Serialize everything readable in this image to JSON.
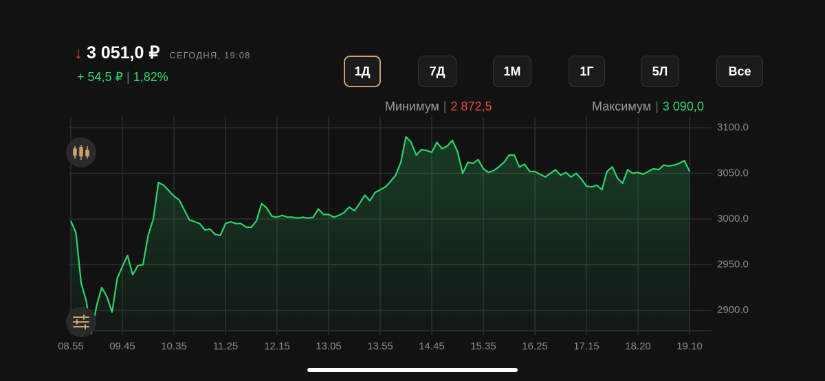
{
  "header": {
    "arrow": "↓",
    "price": "3 051,0 ₽",
    "time": "СЕГОДНЯ, 19:08",
    "change": "+ 54,5 ₽",
    "separator": "|",
    "change_pct": "1,82%"
  },
  "periods": {
    "buttons": [
      "1Д",
      "7Д",
      "1М",
      "1Г",
      "5Л",
      "Все"
    ],
    "active": 0
  },
  "stats": {
    "min_label": "Минимум",
    "min_value": "2 872,5",
    "max_label": "Максимум",
    "max_value": "3 090,0",
    "separator": "|"
  },
  "chart_data": {
    "type": "line",
    "color": "#2bd66a",
    "grid": true,
    "categories": [
      "08.55",
      null,
      null,
      null,
      null,
      null,
      null,
      null,
      null,
      null,
      "09.45",
      null,
      null,
      null,
      null,
      null,
      null,
      null,
      null,
      null,
      "10.35",
      null,
      null,
      null,
      null,
      null,
      null,
      null,
      null,
      null,
      "11.25",
      null,
      null,
      null,
      null,
      null,
      null,
      null,
      null,
      null,
      "12.15",
      null,
      null,
      null,
      null,
      null,
      null,
      null,
      null,
      null,
      "13.05",
      null,
      null,
      null,
      null,
      null,
      null,
      null,
      null,
      null,
      "13.55",
      null,
      null,
      null,
      null,
      null,
      null,
      null,
      null,
      null,
      "14.45",
      null,
      null,
      null,
      null,
      null,
      null,
      null,
      null,
      null,
      "15.35",
      null,
      null,
      null,
      null,
      null,
      null,
      null,
      null,
      null,
      "16.25",
      null,
      null,
      null,
      null,
      null,
      null,
      null,
      null,
      null,
      "17.15",
      null,
      null,
      null,
      null,
      null,
      null,
      null,
      null,
      null,
      "18.20",
      null,
      null,
      null,
      null,
      null,
      null,
      null,
      null,
      null,
      "19.10"
    ],
    "values": [
      2998,
      2985,
      2930,
      2910,
      2875,
      2905,
      2925,
      2915,
      2898,
      2935,
      2948,
      2960,
      2939,
      2949,
      2950,
      2982,
      3000,
      3040,
      3037,
      3031,
      3025,
      3021,
      3010,
      2999,
      2997,
      2995,
      2988,
      2989,
      2983,
      2982,
      2995,
      2997,
      2995,
      2995,
      2991,
      2991,
      2998,
      3017,
      3012,
      3003,
      3002,
      3004,
      3002,
      3002,
      3001,
      3002,
      3001,
      3002,
      3011,
      3005,
      3005,
      3002,
      3004,
      3007,
      3013,
      3009,
      3017,
      3026,
      3020,
      3029,
      3032,
      3035,
      3041,
      3048,
      3062,
      3090,
      3084,
      3070,
      3076,
      3075,
      3073,
      3084,
      3077,
      3080,
      3086,
      3074,
      3050,
      3062,
      3061,
      3065,
      3055,
      3051,
      3053,
      3057,
      3062,
      3070,
      3070,
      3057,
      3060,
      3052,
      3052,
      3049,
      3046,
      3050,
      3054,
      3048,
      3051,
      3046,
      3050,
      3044,
      3036,
      3035,
      3037,
      3032,
      3052,
      3057,
      3045,
      3039,
      3054,
      3050,
      3051,
      3049,
      3052,
      3055,
      3054,
      3059,
      3058,
      3059,
      3061,
      3064,
      3052
    ],
    "ylim": [
      2877.5,
      3112
    ],
    "yticks": [
      {
        "value": 2900,
        "label": "2900.0"
      },
      {
        "value": 2950,
        "label": "2950.0"
      },
      {
        "value": 3000,
        "label": "3000.0"
      },
      {
        "value": 3050,
        "label": "3050.0"
      },
      {
        "value": 3100,
        "label": "3100.0"
      }
    ]
  }
}
